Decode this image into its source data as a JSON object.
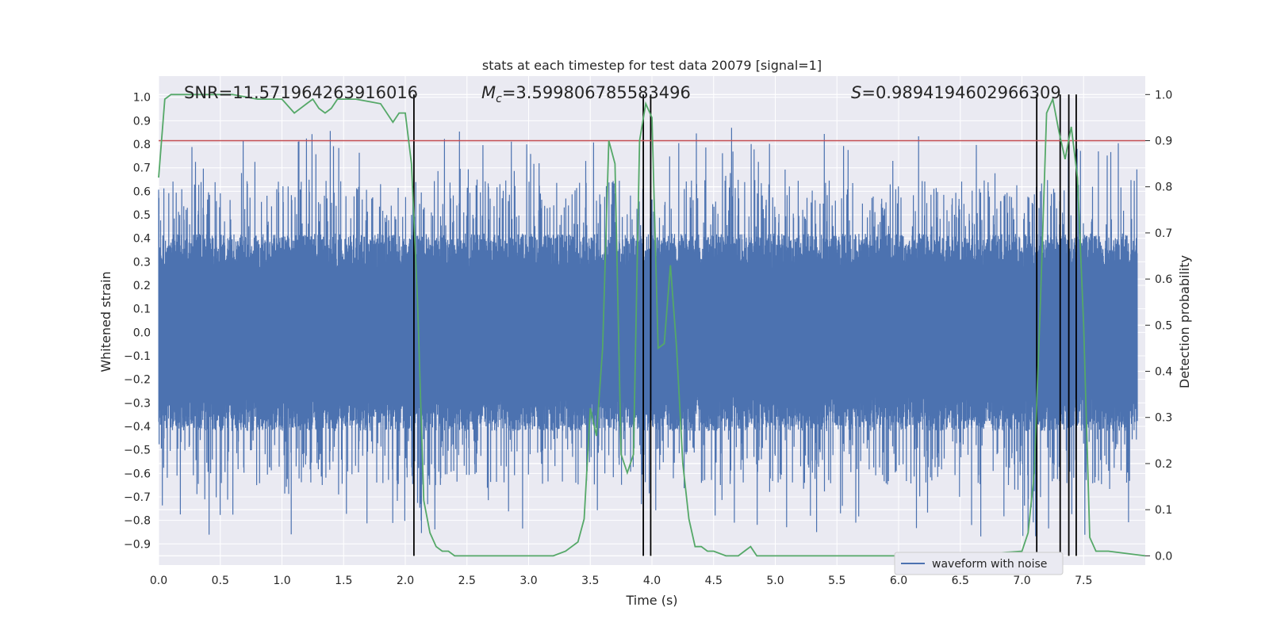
{
  "chart_data": {
    "type": "line",
    "title": "stats at each timestep for test data 20079 [signal=1]",
    "xlabel": "Time (s)",
    "ylabel": "Whitened strain",
    "y2label": "Detection probability",
    "xlim": [
      0.0,
      8.0
    ],
    "ylim": [
      -0.99,
      1.09
    ],
    "y2lim": [
      -0.02,
      1.04
    ],
    "x_ticks": [
      "0.0",
      "0.5",
      "1.0",
      "1.5",
      "2.0",
      "2.5",
      "3.0",
      "3.5",
      "4.0",
      "4.5",
      "5.0",
      "5.5",
      "6.0",
      "6.5",
      "7.0",
      "7.5"
    ],
    "y_ticks": [
      "−0.9",
      "−0.8",
      "−0.7",
      "−0.6",
      "−0.5",
      "−0.4",
      "−0.3",
      "−0.2",
      "−0.1",
      "0.0",
      "0.1",
      "0.2",
      "0.3",
      "0.4",
      "0.5",
      "0.6",
      "0.7",
      "0.8",
      "0.9",
      "1.0"
    ],
    "y2_ticks": [
      "0.0",
      "0.1",
      "0.2",
      "0.3",
      "0.4",
      "0.5",
      "0.6",
      "0.7",
      "0.8",
      "0.9",
      "1.0"
    ],
    "annotations": {
      "snr": "SNR=11.571964263916016",
      "mc_symbol": "M",
      "mc_subscript": "c",
      "mc_value": "=3.599806785583496",
      "s_symbol": "S",
      "s_value": "=0.9894194602966309"
    },
    "threshold": {
      "axis": "y2",
      "value": 0.9,
      "color": "#c44e52"
    },
    "detection_markers_x": [
      2.07,
      3.93,
      3.99,
      7.12,
      7.31,
      7.38,
      7.44
    ],
    "series": [
      {
        "name": "waveform with noise",
        "axis": "y",
        "color": "#4c72b0",
        "description": "dense whitened strain noise sampled across 0-8 s",
        "approx_range": [
          -0.9,
          0.9
        ]
      },
      {
        "name": "detection probability",
        "axis": "y2",
        "color": "#55a868",
        "x": [
          0.0,
          0.05,
          0.1,
          0.2,
          0.4,
          0.6,
          0.8,
          1.0,
          1.1,
          1.2,
          1.25,
          1.3,
          1.35,
          1.4,
          1.45,
          1.5,
          1.6,
          1.8,
          1.9,
          1.95,
          2.0,
          2.05,
          2.1,
          2.15,
          2.2,
          2.25,
          2.3,
          2.35,
          2.4,
          2.5,
          2.6,
          2.8,
          3.0,
          3.1,
          3.2,
          3.3,
          3.4,
          3.45,
          3.5,
          3.55,
          3.6,
          3.65,
          3.7,
          3.75,
          3.8,
          3.85,
          3.9,
          3.95,
          4.0,
          4.05,
          4.1,
          4.15,
          4.2,
          4.25,
          4.3,
          4.35,
          4.4,
          4.45,
          4.5,
          4.6,
          4.7,
          4.75,
          4.8,
          4.85,
          4.9,
          5.0,
          5.5,
          5.9,
          6.0,
          6.5,
          7.0,
          7.05,
          7.1,
          7.15,
          7.2,
          7.25,
          7.3,
          7.35,
          7.4,
          7.45,
          7.5,
          7.55,
          7.6,
          7.7,
          8.0
        ],
        "values": [
          0.82,
          0.99,
          1.0,
          1.0,
          1.0,
          1.0,
          0.99,
          0.99,
          0.96,
          0.98,
          0.99,
          0.97,
          0.96,
          0.97,
          0.99,
          0.99,
          0.99,
          0.98,
          0.94,
          0.96,
          0.96,
          0.85,
          0.55,
          0.12,
          0.05,
          0.02,
          0.01,
          0.01,
          0.0,
          0.0,
          0.0,
          0.0,
          0.0,
          0.0,
          0.0,
          0.01,
          0.03,
          0.08,
          0.32,
          0.26,
          0.45,
          0.9,
          0.85,
          0.22,
          0.18,
          0.22,
          0.9,
          0.98,
          0.95,
          0.45,
          0.46,
          0.63,
          0.45,
          0.2,
          0.08,
          0.02,
          0.02,
          0.01,
          0.01,
          0.0,
          0.0,
          0.01,
          0.02,
          0.0,
          0.0,
          0.0,
          0.0,
          0.0,
          0.0,
          0.0,
          0.01,
          0.05,
          0.18,
          0.55,
          0.96,
          0.99,
          0.92,
          0.86,
          0.93,
          0.82,
          0.5,
          0.04,
          0.01,
          0.01,
          0.0
        ]
      }
    ],
    "legend": {
      "placement": "lower-right",
      "entries": [
        "waveform with noise"
      ]
    }
  }
}
